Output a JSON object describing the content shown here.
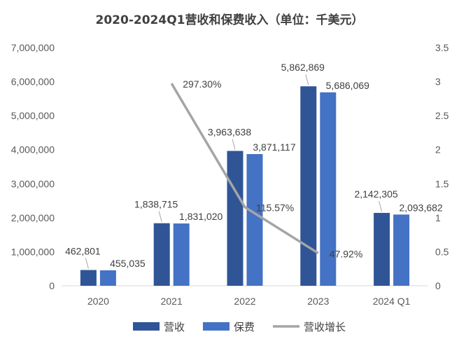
{
  "chart_data": {
    "type": "bar",
    "title": "2020-2024Q1营收和保费收入（单位：千美元）",
    "categories": [
      "2020",
      "2021",
      "2022",
      "2023",
      "2024 Q1"
    ],
    "series": [
      {
        "name": "营收",
        "type": "bar",
        "axis": "left",
        "color": "#2F5597",
        "values": [
          462801,
          1838715,
          3963638,
          5862869,
          2142305
        ],
        "labels": [
          "462,801",
          "1,838,715",
          "3,963,638",
          "5,862,869",
          "2,142,305"
        ]
      },
      {
        "name": "保费",
        "type": "bar",
        "axis": "left",
        "color": "#4472C4",
        "values": [
          455035,
          1831020,
          3871117,
          5686069,
          2093682
        ],
        "labels": [
          "455,035",
          "1,831,020",
          "3,871,117",
          "5,686,069",
          "2,093,682"
        ]
      },
      {
        "name": "营收增长",
        "type": "line",
        "axis": "right",
        "color": "#A5A5A5",
        "values": [
          null,
          2.973,
          1.1557,
          0.4792,
          null
        ],
        "labels": [
          null,
          "297.30%",
          "115.57%",
          "47.92%",
          null
        ]
      }
    ],
    "left_axis": {
      "ylim": [
        0,
        7000000
      ],
      "ticks": [
        "0",
        "1,000,000",
        "2,000,000",
        "3,000,000",
        "4,000,000",
        "5,000,000",
        "6,000,000",
        "7,000,000"
      ]
    },
    "right_axis": {
      "ylim": [
        0,
        3.5
      ],
      "ticks": [
        "0",
        "0.5",
        "1",
        "1.5",
        "2",
        "2.5",
        "3",
        "3.5"
      ]
    },
    "legend": "bottom",
    "grid": false
  }
}
